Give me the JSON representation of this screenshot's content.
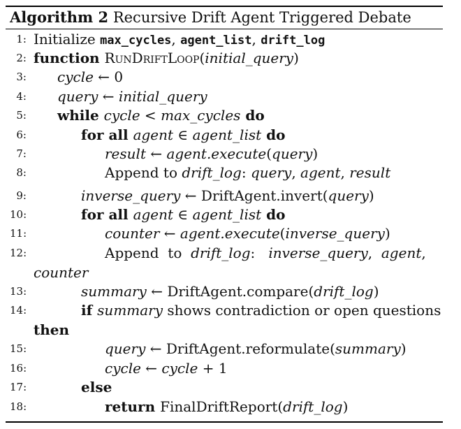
{
  "caption": {
    "label": "Algorithm 2",
    "title": "Recursive Drift Agent Triggered Debate"
  },
  "lines": [
    {
      "n": "1:",
      "segs": [
        [
          "n",
          "Initialize "
        ],
        [
          "tt",
          "max_cycles"
        ],
        [
          "n",
          ", "
        ],
        [
          "tt",
          "agent_list"
        ],
        [
          "n",
          ", "
        ],
        [
          "tt",
          "drift_log"
        ]
      ]
    },
    {
      "n": "2:",
      "segs": [
        [
          "kw",
          "function "
        ],
        [
          "sc",
          "RunDriftLoop"
        ],
        [
          "n",
          "("
        ],
        [
          "it",
          "initial_query"
        ],
        [
          "n",
          ")"
        ]
      ]
    },
    {
      "n": "3:",
      "segs": [
        [
          "it",
          "cycle"
        ],
        [
          "n",
          " ← 0"
        ]
      ]
    },
    {
      "n": "4:",
      "segs": [
        [
          "it",
          "query"
        ],
        [
          "n",
          " ← "
        ],
        [
          "it",
          "initial_query"
        ]
      ]
    },
    {
      "n": "5:",
      "segs": [
        [
          "kw",
          "while "
        ],
        [
          "it",
          "cycle"
        ],
        [
          "n",
          " < "
        ],
        [
          "it",
          "max_cycles"
        ],
        [
          "kw",
          " do"
        ]
      ]
    },
    {
      "n": "6:",
      "segs": [
        [
          "kw",
          "for all "
        ],
        [
          "it",
          "agent"
        ],
        [
          "n",
          " ∈ "
        ],
        [
          "it",
          "agent_list"
        ],
        [
          "kw",
          " do"
        ]
      ]
    },
    {
      "n": "7:",
      "segs": [
        [
          "it",
          "result"
        ],
        [
          "n",
          " ← "
        ],
        [
          "it",
          "agent.execute"
        ],
        [
          "n",
          "("
        ],
        [
          "it",
          "query"
        ],
        [
          "n",
          ")"
        ]
      ]
    },
    {
      "n": "8:",
      "segs": [
        [
          "n",
          "Append to "
        ],
        [
          "it",
          "drift_log"
        ],
        [
          "n",
          ": "
        ],
        [
          "it",
          "query"
        ],
        [
          "n",
          ", "
        ],
        [
          "it",
          "agent"
        ],
        [
          "n",
          ", "
        ],
        [
          "it",
          "result"
        ]
      ]
    },
    {
      "n": "9:",
      "segs": [
        [
          "it",
          "inverse_query"
        ],
        [
          "n",
          " ← DriftAgent.invert("
        ],
        [
          "it",
          "query"
        ],
        [
          "n",
          ")"
        ]
      ]
    },
    {
      "n": "10:",
      "segs": [
        [
          "kw",
          "for all "
        ],
        [
          "it",
          "agent"
        ],
        [
          "n",
          " ∈ "
        ],
        [
          "it",
          "agent_list"
        ],
        [
          "kw",
          " do"
        ]
      ]
    },
    {
      "n": "11:",
      "segs": [
        [
          "it",
          "counter"
        ],
        [
          "n",
          " ← "
        ],
        [
          "it",
          "agent.execute"
        ],
        [
          "n",
          "("
        ],
        [
          "it",
          "inverse_query"
        ],
        [
          "n",
          ")"
        ]
      ]
    },
    {
      "n": "12:",
      "segs": [
        [
          "n",
          "Append  to  "
        ],
        [
          "it",
          "drift_log"
        ],
        [
          "n",
          ":   "
        ],
        [
          "it",
          "inverse_query"
        ],
        [
          "n",
          ",  "
        ],
        [
          "it",
          "agent"
        ],
        [
          "n",
          ","
        ]
      ]
    },
    {
      "n": "",
      "segs": [
        [
          "it",
          "counter"
        ]
      ]
    },
    {
      "n": "13:",
      "segs": [
        [
          "it",
          "summary"
        ],
        [
          "n",
          " ← DriftAgent.compare("
        ],
        [
          "it",
          "drift_log"
        ],
        [
          "n",
          ")"
        ]
      ]
    },
    {
      "n": "14:",
      "segs": [
        [
          "kw",
          "if "
        ],
        [
          "it",
          "summary"
        ],
        [
          "n",
          " shows contradiction or open questions"
        ]
      ]
    },
    {
      "n": "",
      "segs": [
        [
          "kw",
          "then"
        ]
      ]
    },
    {
      "n": "15:",
      "segs": [
        [
          "it",
          "query"
        ],
        [
          "n",
          " ← DriftAgent.reformulate("
        ],
        [
          "it",
          "summary"
        ],
        [
          "n",
          ")"
        ]
      ]
    },
    {
      "n": "16:",
      "segs": [
        [
          "it",
          "cycle"
        ],
        [
          "n",
          " ← "
        ],
        [
          "it",
          "cycle"
        ],
        [
          "n",
          " + 1"
        ]
      ]
    },
    {
      "n": "17:",
      "segs": [
        [
          "kw",
          "else"
        ]
      ]
    },
    {
      "n": "18:",
      "segs": [
        [
          "kw",
          "return "
        ],
        [
          "n",
          "FinalDriftReport("
        ],
        [
          "it",
          "drift_log"
        ],
        [
          "n",
          ")"
        ]
      ]
    }
  ]
}
